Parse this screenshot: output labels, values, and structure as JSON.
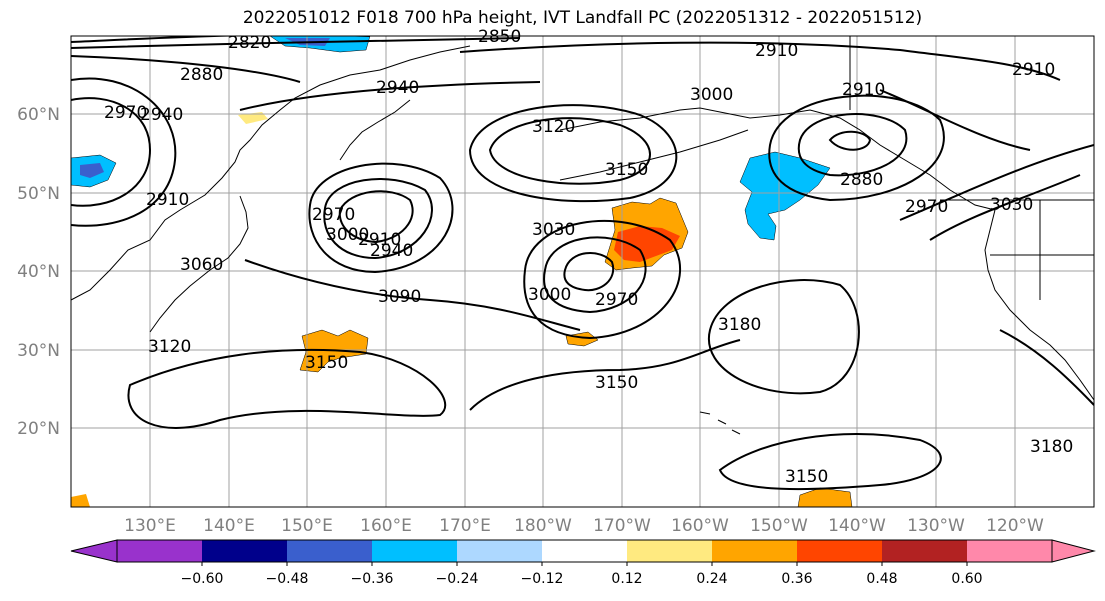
{
  "title": "2022051012 F018 700 hPa height, IVT Landfall PC (2022051312 - 2022051512)",
  "map": {
    "lat_labels": [
      "60°N",
      "50°N",
      "40°N",
      "30°N",
      "20°N"
    ],
    "lon_labels": [
      "130°E",
      "140°E",
      "150°E",
      "160°E",
      "170°E",
      "180°W",
      "170°W",
      "160°W",
      "150°W",
      "140°W",
      "130°W",
      "120°W"
    ],
    "contour_labels": [
      "2820",
      "2850",
      "2910",
      "2880",
      "2940",
      "2970",
      "2940",
      "2910",
      "3120",
      "3000",
      "2910",
      "2910",
      "3150",
      "3060",
      "2970",
      "3000",
      "2910",
      "2940",
      "3030",
      "3030",
      "2880",
      "2970",
      "3000",
      "3090",
      "2970",
      "3180",
      "3120",
      "3150",
      "3150",
      "3150",
      "3180"
    ],
    "colors": {
      "contour": "#000000",
      "grid": "#a0a0a0",
      "coast": "#000000"
    }
  },
  "colorbar": {
    "ticks": [
      "−0.60",
      "−0.48",
      "−0.36",
      "−0.24",
      "−0.12",
      "0.12",
      "0.24",
      "0.36",
      "0.48",
      "0.60"
    ],
    "colors": [
      "#9932cc",
      "#00008b",
      "#3a5fcd",
      "#00bfff",
      "#add8ff",
      "#ffffff",
      "#ffea80",
      "#ffa500",
      "#ff4500",
      "#b22222",
      "#ff88aa"
    ]
  }
}
